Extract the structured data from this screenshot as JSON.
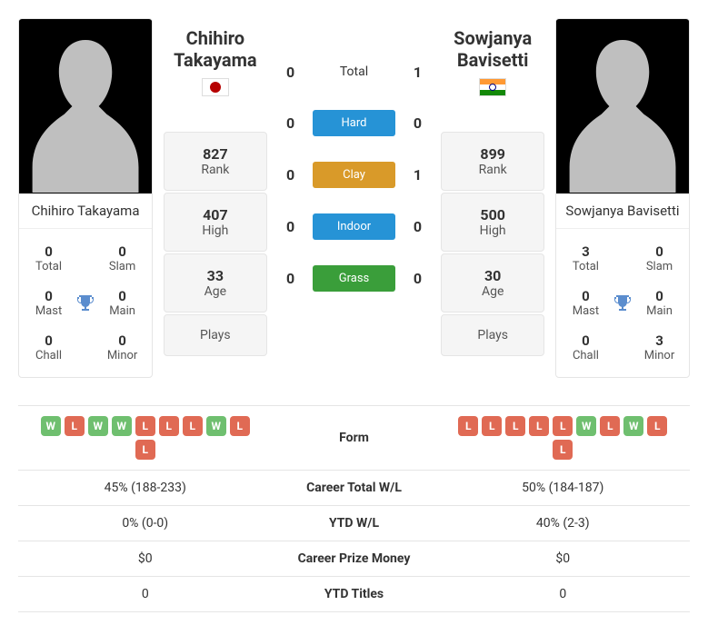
{
  "colors": {
    "hard": "#2693d6",
    "clay": "#d99a29",
    "indoor": "#2693d6",
    "grass": "#3a9e3a",
    "win": "#6fbf6f",
    "loss": "#e06a54",
    "trophy": "#5b8dce"
  },
  "player1": {
    "name_line1": "Chihiro",
    "name_line2": "Takayama",
    "full_name": "Chihiro Takayama",
    "country": "japan",
    "rank": "827",
    "high": "407",
    "age": "33",
    "plays": "",
    "titles": {
      "total": "0",
      "slam": "0",
      "mast": "0",
      "main": "0",
      "chall": "0",
      "minor": "0"
    },
    "form": [
      "W",
      "L",
      "W",
      "W",
      "L",
      "L",
      "L",
      "W",
      "L",
      "L"
    ],
    "career_wl": "45% (188-233)",
    "ytd_wl": "0% (0-0)",
    "prize": "$0",
    "ytd_titles": "0"
  },
  "player2": {
    "name_line1": "Sowjanya",
    "name_line2": "Bavisetti",
    "full_name": "Sowjanya Bavisetti",
    "country": "india",
    "rank": "899",
    "high": "500",
    "age": "30",
    "plays": "",
    "titles": {
      "total": "3",
      "slam": "0",
      "mast": "0",
      "main": "0",
      "chall": "0",
      "minor": "3"
    },
    "form": [
      "L",
      "L",
      "L",
      "L",
      "L",
      "W",
      "L",
      "W",
      "L",
      "L"
    ],
    "career_wl": "50% (184-187)",
    "ytd_wl": "40% (2-3)",
    "prize": "$0",
    "ytd_titles": "0"
  },
  "h2h": {
    "total": {
      "p1": "0",
      "p2": "1",
      "label": "Total"
    },
    "surfaces": [
      {
        "p1": "0",
        "p2": "0",
        "label": "Hard",
        "color_key": "hard"
      },
      {
        "p1": "0",
        "p2": "1",
        "label": "Clay",
        "color_key": "clay"
      },
      {
        "p1": "0",
        "p2": "0",
        "label": "Indoor",
        "color_key": "indoor"
      },
      {
        "p1": "0",
        "p2": "0",
        "label": "Grass",
        "color_key": "grass"
      }
    ]
  },
  "labels": {
    "rank": "Rank",
    "high": "High",
    "age": "Age",
    "plays": "Plays",
    "total": "Total",
    "slam": "Slam",
    "mast": "Mast",
    "main": "Main",
    "chall": "Chall",
    "minor": "Minor",
    "form": "Form",
    "career_wl": "Career Total W/L",
    "ytd_wl": "YTD W/L",
    "prize": "Career Prize Money",
    "ytd_titles": "YTD Titles"
  }
}
